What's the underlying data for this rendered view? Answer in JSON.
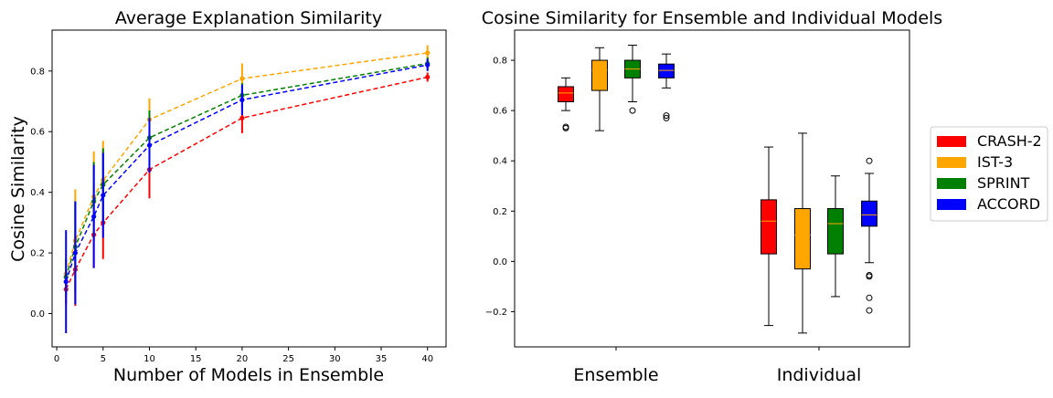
{
  "chart_data": [
    {
      "type": "line",
      "title": "Average Explanation Similarity",
      "xlabel": "Number of Models in Ensemble",
      "ylabel": "Cosine Similarity",
      "xlim": [
        -0.5,
        42
      ],
      "ylim": [
        -0.11,
        0.935
      ],
      "xticks": [
        0,
        5,
        10,
        15,
        20,
        25,
        30,
        35,
        40
      ],
      "yticks": [
        0.0,
        0.2,
        0.4,
        0.6,
        0.8
      ],
      "x": [
        1,
        2,
        4,
        5,
        10,
        20,
        40
      ],
      "series": [
        {
          "name": "CRASH-2",
          "color": "#ff0000",
          "values": [
            0.08,
            0.145,
            0.26,
            0.3,
            0.475,
            0.645,
            0.78
          ],
          "err": [
            0.05,
            0.12,
            0.11,
            0.12,
            0.095,
            0.05,
            0.015
          ]
        },
        {
          "name": "IST-3",
          "color": "#ffa500",
          "values": [
            0.13,
            0.24,
            0.385,
            0.44,
            0.64,
            0.775,
            0.86
          ],
          "err": [
            0.05,
            0.17,
            0.15,
            0.13,
            0.07,
            0.05,
            0.025
          ]
        },
        {
          "name": "SPRINT",
          "color": "#008000",
          "values": [
            0.12,
            0.22,
            0.37,
            0.425,
            0.58,
            0.72,
            0.825
          ],
          "err": [
            0.06,
            0.15,
            0.13,
            0.12,
            0.09,
            0.04,
            0.02
          ]
        },
        {
          "name": "ACCORD",
          "color": "#0000ff",
          "values": [
            0.105,
            0.2,
            0.32,
            0.39,
            0.555,
            0.705,
            0.82
          ],
          "err": [
            0.17,
            0.17,
            0.17,
            0.14,
            0.09,
            0.05,
            0.02
          ]
        }
      ]
    },
    {
      "type": "box",
      "title": "Cosine Similarity for Ensemble and Individual Models",
      "categories": [
        "Ensemble",
        "Individual"
      ],
      "ylim": [
        -0.34,
        0.92
      ],
      "yticks": [
        -0.2,
        0.0,
        0.2,
        0.4,
        0.6,
        0.8
      ],
      "groups": [
        {
          "category": "Ensemble",
          "boxes": [
            {
              "name": "CRASH-2",
              "color": "#ff0000",
              "whisker_low": 0.6,
              "q1": 0.635,
              "median": 0.67,
              "q3": 0.695,
              "whisker_high": 0.73,
              "outliers": [
                0.53,
                0.535
              ]
            },
            {
              "name": "IST-3",
              "color": "#ffa500",
              "whisker_low": 0.52,
              "q1": 0.68,
              "median": 0.76,
              "q3": 0.8,
              "whisker_high": 0.85,
              "outliers": []
            },
            {
              "name": "SPRINT",
              "color": "#008000",
              "whisker_low": 0.635,
              "q1": 0.73,
              "median": 0.765,
              "q3": 0.8,
              "whisker_high": 0.86,
              "outliers": [
                0.6
              ]
            },
            {
              "name": "ACCORD",
              "color": "#0000ff",
              "whisker_low": 0.69,
              "q1": 0.73,
              "median": 0.76,
              "q3": 0.785,
              "whisker_high": 0.825,
              "outliers": [
                0.57,
                0.58
              ]
            }
          ]
        },
        {
          "category": "Individual",
          "boxes": [
            {
              "name": "CRASH-2",
              "color": "#ff0000",
              "whisker_low": -0.255,
              "q1": 0.03,
              "median": 0.16,
              "q3": 0.245,
              "whisker_high": 0.455,
              "outliers": []
            },
            {
              "name": "IST-3",
              "color": "#ffa500",
              "whisker_low": -0.285,
              "q1": -0.03,
              "median": 0.105,
              "q3": 0.21,
              "whisker_high": 0.51,
              "outliers": []
            },
            {
              "name": "SPRINT",
              "color": "#008000",
              "whisker_low": -0.14,
              "q1": 0.03,
              "median": 0.15,
              "q3": 0.21,
              "whisker_high": 0.34,
              "outliers": []
            },
            {
              "name": "ACCORD",
              "color": "#0000ff",
              "whisker_low": -0.005,
              "q1": 0.14,
              "median": 0.185,
              "q3": 0.24,
              "whisker_high": 0.35,
              "outliers": [
                0.4,
                -0.055,
                -0.06,
                -0.145,
                -0.195
              ]
            }
          ]
        }
      ],
      "legend": {
        "placement": "right",
        "entries": [
          {
            "label": "CRASH-2",
            "color": "#ff0000"
          },
          {
            "label": "IST-3",
            "color": "#ffa500"
          },
          {
            "label": "SPRINT",
            "color": "#008000"
          },
          {
            "label": "ACCORD",
            "color": "#0000ff"
          }
        ]
      }
    }
  ]
}
